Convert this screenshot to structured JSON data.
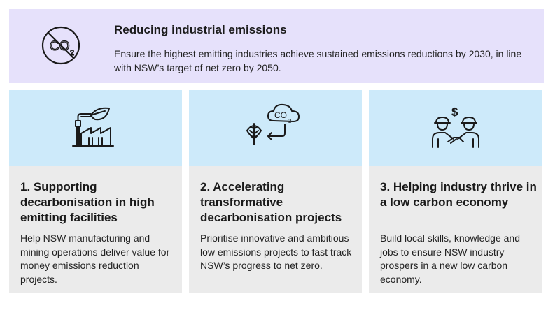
{
  "banner": {
    "icon": "co2-crossed-icon",
    "title": "Reducing industrial emissions",
    "description": "Ensure the highest emitting industries achieve sustained emissions reductions by 2030, in line with NSW’s target of net zero by 2050."
  },
  "cards": [
    {
      "icon": "factory-leaf-icon",
      "title": "1. Supporting decarbonisation in high emitting facilities",
      "body": "Help NSW manufacturing and mining operations deliver value for money emissions reduction projects."
    },
    {
      "icon": "leaf-co2-cycle-icon",
      "title": "2. Accelerating transformative decarbonisation projects",
      "body": "Prioritise innovative and ambitious low emissions projects to fast track NSW’s progress to net zero."
    },
    {
      "icon": "handshake-dollar-icon",
      "title": "3. Helping industry thrive in a low carbon economy",
      "body": "Build local skills, knowledge and jobs to ensure NSW industry prospers in a new low carbon economy."
    }
  ],
  "colors": {
    "banner_bg": "#e6e1fb",
    "card_top_bg": "#cdeafa",
    "card_bg": "#ebebeb",
    "icon_stroke": "#1a1a1a"
  }
}
